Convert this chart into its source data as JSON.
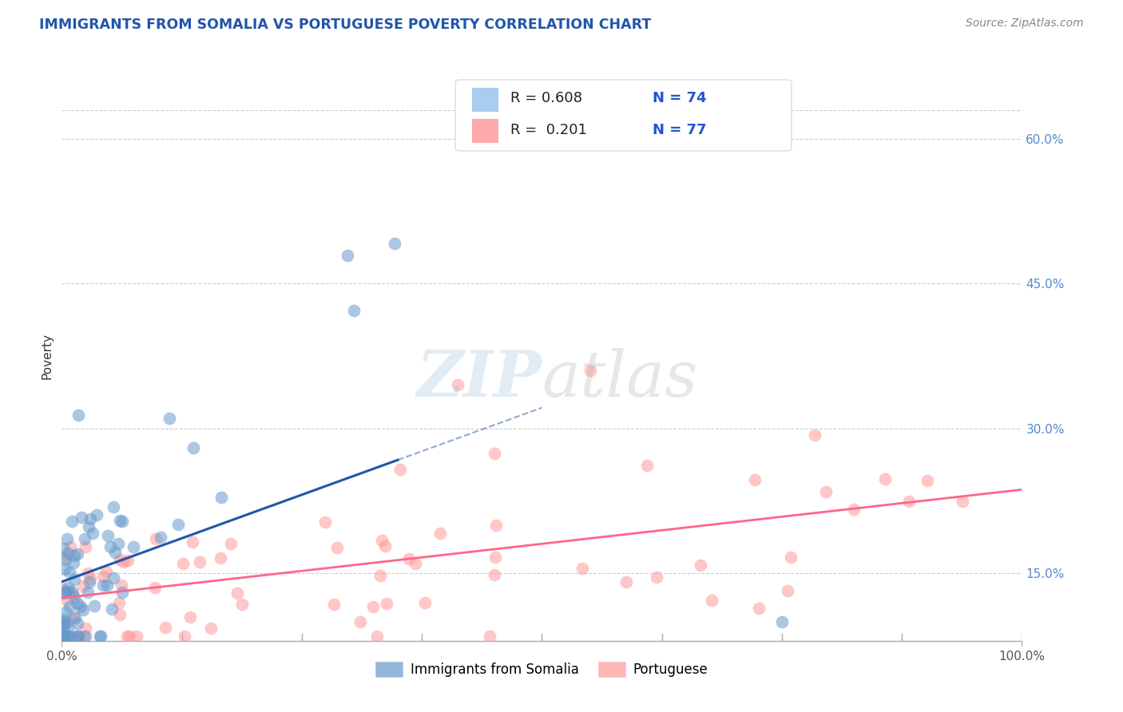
{
  "title": "IMMIGRANTS FROM SOMALIA VS PORTUGUESE POVERTY CORRELATION CHART",
  "source": "Source: ZipAtlas.com",
  "ylabel": "Poverty",
  "right_yticks": [
    0.15,
    0.3,
    0.45,
    0.6
  ],
  "right_yticklabels": [
    "15.0%",
    "30.0%",
    "45.0%",
    "60.0%"
  ],
  "ylim": [
    0.08,
    0.67
  ],
  "xlim": [
    0.0,
    1.0
  ],
  "series1_label": "Immigrants from Somalia",
  "series2_label": "Portuguese",
  "series1_R": "0.608",
  "series1_N": "74",
  "series2_R": "0.201",
  "series2_N": "77",
  "series1_color": "#6699CC",
  "series2_color": "#FF9999",
  "series1_line_color": "#2255AA",
  "series2_line_color": "#FF6688",
  "background_color": "#FFFFFF",
  "grid_color": "#CCCCCC",
  "title_color": "#2255AA",
  "top_gridline_y": 0.63
}
